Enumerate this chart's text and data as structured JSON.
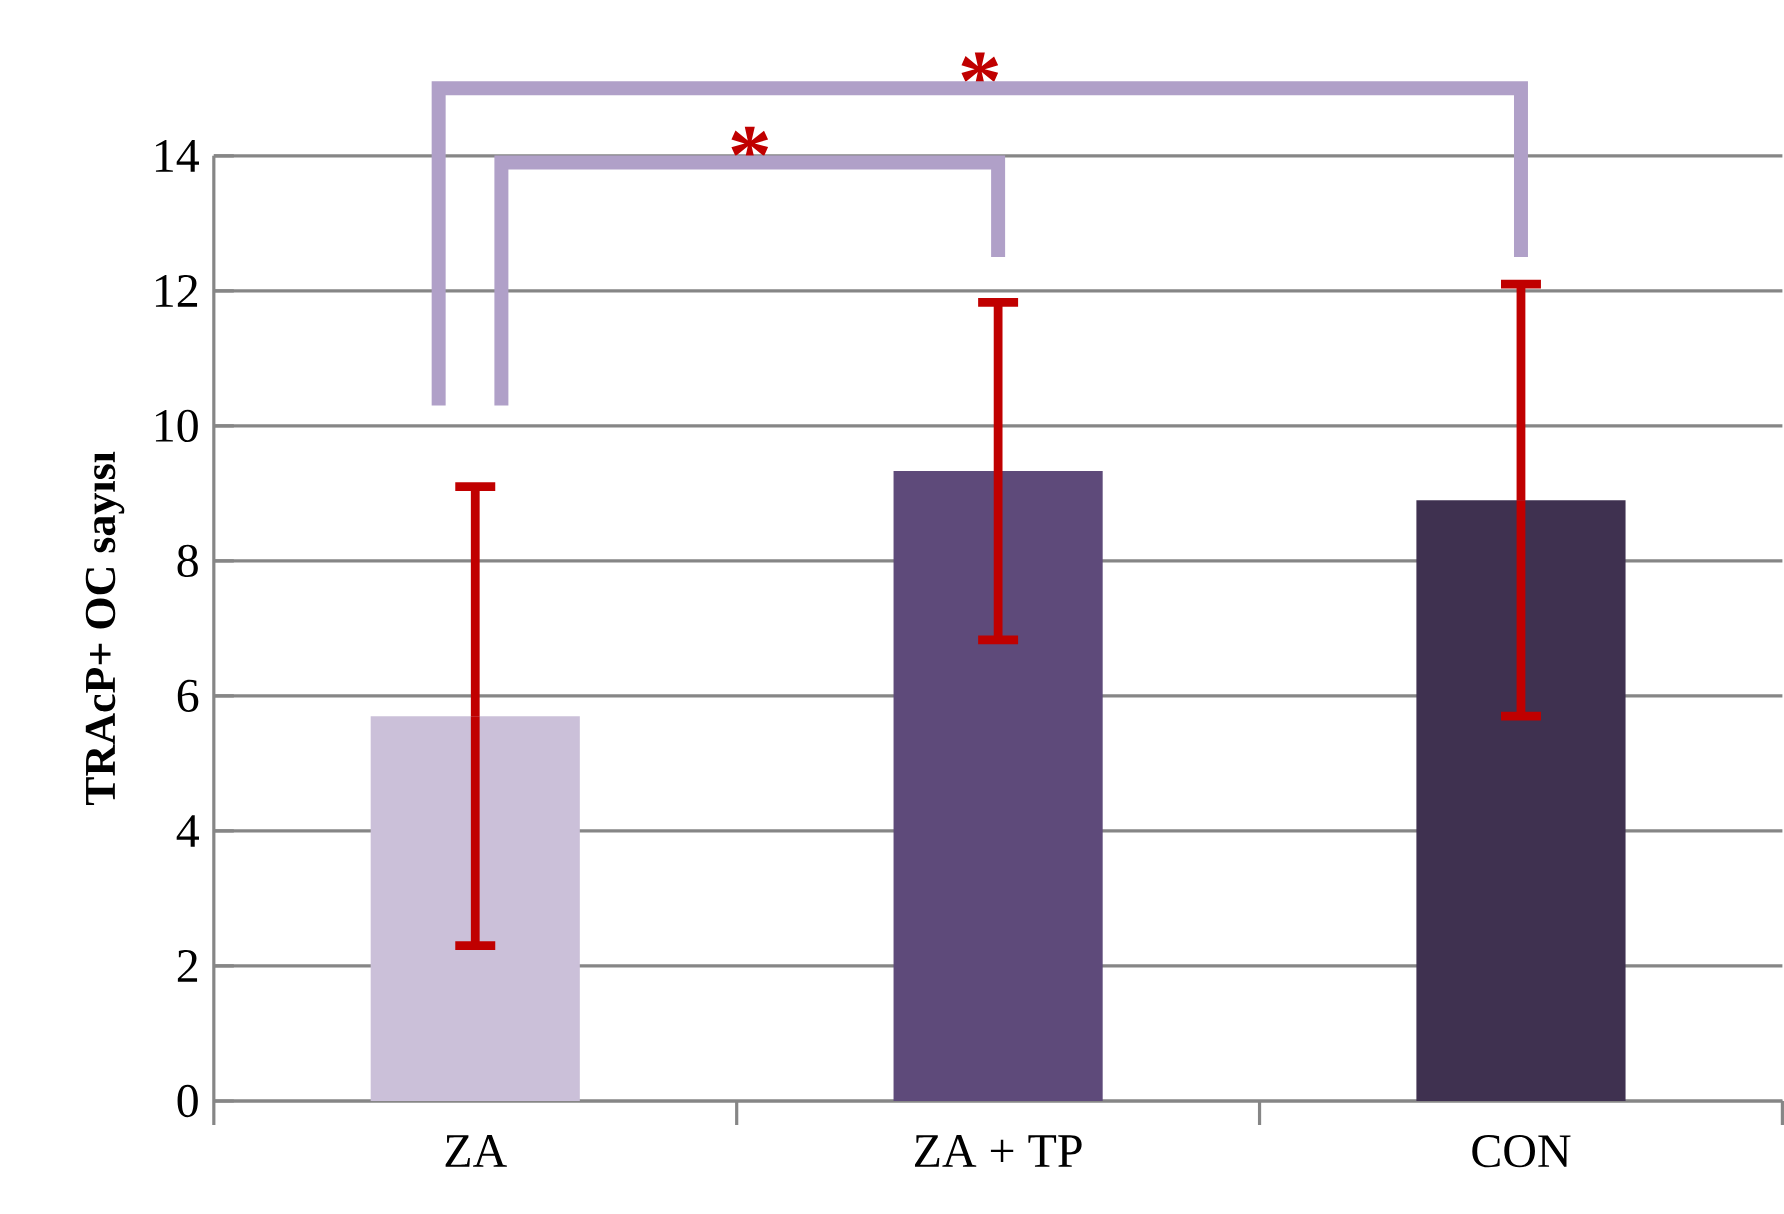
{
  "chart_data": {
    "type": "bar",
    "ylabel": "TRAcP+ OC sayısı",
    "categories": [
      "ZA",
      "ZA + TP",
      "CON"
    ],
    "values": [
      5.7,
      9.33,
      8.9
    ],
    "colors": [
      "#cbc0d9",
      "#5e4a7a",
      "#3f3150"
    ],
    "errors": [
      3.4,
      2.5,
      3.2
    ],
    "ylim": [
      0,
      14
    ],
    "yticks": [
      0,
      2,
      4,
      6,
      8,
      10,
      12,
      14
    ],
    "grid": "y",
    "annotations": [
      "*",
      "*"
    ]
  }
}
